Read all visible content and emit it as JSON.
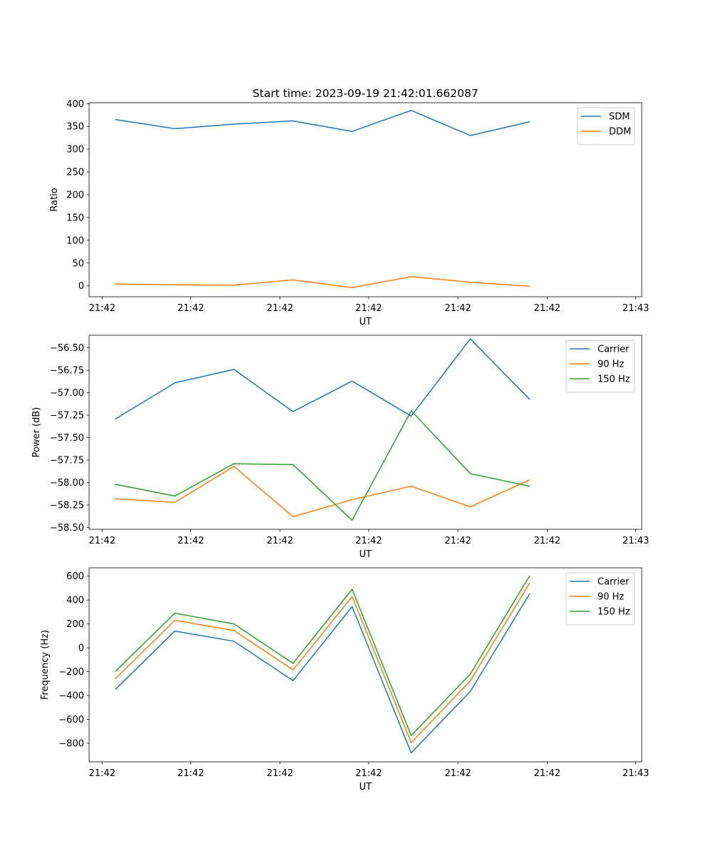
{
  "figure_title": "Start time: 2023-09-19 21:42:01.662087",
  "colors": {
    "blue": "#1f77b4",
    "orange": "#ff7f0e",
    "green": "#2ca02c"
  },
  "chart_data": [
    {
      "type": "line",
      "title": "Start time: 2023-09-19 21:42:01.662087",
      "xlabel": "UT",
      "ylabel": "Ratio",
      "x": [
        1,
        2,
        3,
        4,
        5,
        6,
        7,
        8
      ],
      "xlim": [
        0.55,
        9.9
      ],
      "xticks": [
        0.77,
        2.27,
        3.78,
        5.28,
        6.79,
        8.3,
        9.8
      ],
      "xtick_labels": [
        "21:42",
        "21:42",
        "21:42",
        "21:42",
        "21:42",
        "21:42",
        "21:43"
      ],
      "ylim": [
        -24,
        402
      ],
      "yticks": [
        0,
        50,
        100,
        150,
        200,
        250,
        300,
        350,
        400
      ],
      "ytick_labels": [
        "0",
        "50",
        "100",
        "150",
        "200",
        "250",
        "300",
        "350",
        "400"
      ],
      "legend": "top-right",
      "series": [
        {
          "name": "SDM",
          "color": "#1f77b4",
          "values": [
            365,
            345,
            355,
            362,
            339,
            385,
            330,
            360
          ]
        },
        {
          "name": "DDM",
          "color": "#ff7f0e",
          "values": [
            4,
            2,
            1.5,
            13,
            -4,
            20,
            8,
            -1
          ]
        }
      ]
    },
    {
      "type": "line",
      "title": "",
      "xlabel": "UT",
      "ylabel": "Power (dB)",
      "x": [
        1,
        2,
        3,
        4,
        5,
        6,
        7,
        8
      ],
      "xlim": [
        0.55,
        9.9
      ],
      "xticks": [
        0.77,
        2.27,
        3.78,
        5.28,
        6.79,
        8.3,
        9.8
      ],
      "xtick_labels": [
        "21:42",
        "21:42",
        "21:42",
        "21:42",
        "21:42",
        "21:42",
        "21:43"
      ],
      "ylim": [
        -58.52,
        -56.36
      ],
      "yticks": [
        -58.5,
        -58.25,
        -58.0,
        -57.75,
        -57.5,
        -57.25,
        -57.0,
        -56.75,
        -56.5
      ],
      "ytick_labels": [
        "−58.50",
        "−58.25",
        "−58.00",
        "−57.75",
        "−57.50",
        "−57.25",
        "−57.00",
        "−56.75",
        "−56.50"
      ],
      "legend": "top-right",
      "series": [
        {
          "name": "Carrier",
          "color": "#1f77b4",
          "values": [
            -57.29,
            -56.89,
            -56.74,
            -57.21,
            -56.87,
            -57.26,
            -56.4,
            -57.07
          ]
        },
        {
          "name": "90 Hz",
          "color": "#ff7f0e",
          "values": [
            -58.18,
            -58.22,
            -57.82,
            -58.38,
            -58.19,
            -58.04,
            -58.27,
            -57.97
          ]
        },
        {
          "name": "150 Hz",
          "color": "#2ca02c",
          "values": [
            -58.02,
            -58.15,
            -57.79,
            -57.8,
            -58.42,
            -57.2,
            -57.9,
            -58.04
          ]
        }
      ]
    },
    {
      "type": "line",
      "title": "",
      "xlabel": "UT",
      "ylabel": "Frequency (Hz)",
      "x": [
        1,
        2,
        3,
        4,
        5,
        6,
        7,
        8
      ],
      "xlim": [
        0.55,
        9.9
      ],
      "xticks": [
        0.77,
        2.27,
        3.78,
        5.28,
        6.79,
        8.3,
        9.8
      ],
      "xtick_labels": [
        "21:42",
        "21:42",
        "21:42",
        "21:42",
        "21:42",
        "21:42",
        "21:43"
      ],
      "ylim": [
        -955,
        670
      ],
      "yticks": [
        -800,
        -600,
        -400,
        -200,
        0,
        200,
        400,
        600
      ],
      "ytick_labels": [
        "−800",
        "−600",
        "−400",
        "−200",
        "0",
        "200",
        "400",
        "600"
      ],
      "legend": "top-right",
      "series": [
        {
          "name": "Carrier",
          "color": "#1f77b4",
          "values": [
            -345,
            140,
            55,
            -275,
            345,
            -880,
            -365,
            450
          ]
        },
        {
          "name": "90 Hz",
          "color": "#ff7f0e",
          "values": [
            -255,
            230,
            145,
            -185,
            430,
            -795,
            -275,
            540
          ]
        },
        {
          "name": "150 Hz",
          "color": "#2ca02c",
          "values": [
            -195,
            290,
            200,
            -130,
            490,
            -735,
            -220,
            600
          ]
        }
      ]
    }
  ]
}
